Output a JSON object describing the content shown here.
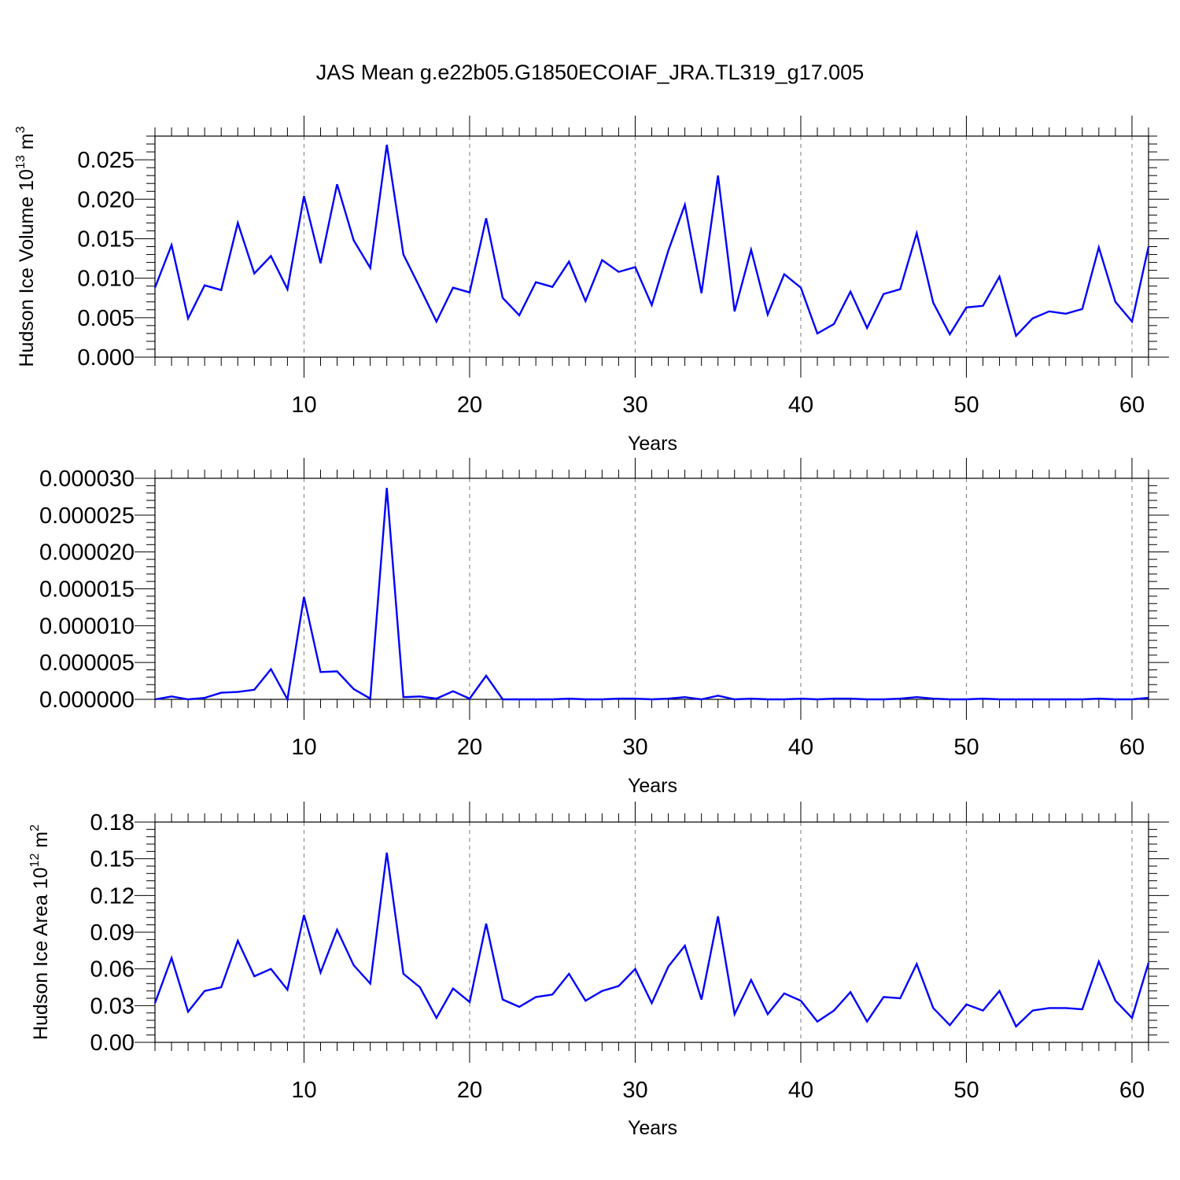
{
  "title": "JAS Mean g.e22b05.G1850ECOIAF_JRA.TL319_g17.005",
  "series_color": "#0000ff",
  "chart_data": [
    {
      "type": "line",
      "xlabel": "Years",
      "ylabel": {
        "text": "Hudson Ice Volume 10",
        "sup": "13",
        "unit": " m",
        "unit_sup": "3"
      },
      "xlim": [
        1,
        61
      ],
      "ylim": [
        0,
        0.028
      ],
      "xticks": [
        10,
        20,
        30,
        40,
        50,
        60
      ],
      "xtick_labels": [
        "10",
        "20",
        "30",
        "40",
        "50",
        "60"
      ],
      "yticks": [
        0,
        0.005,
        0.01,
        0.015,
        0.02,
        0.025
      ],
      "ytick_labels": [
        "0.000",
        "0.005",
        "0.010",
        "0.015",
        "0.020",
        "0.025"
      ],
      "grid": "x-dashed",
      "x": [
        1,
        2,
        3,
        4,
        5,
        6,
        7,
        8,
        9,
        10,
        11,
        12,
        13,
        14,
        15,
        16,
        17,
        18,
        19,
        20,
        21,
        22,
        23,
        24,
        25,
        26,
        27,
        28,
        29,
        30,
        31,
        32,
        33,
        34,
        35,
        36,
        37,
        38,
        39,
        40,
        41,
        42,
        43,
        44,
        45,
        46,
        47,
        48,
        49,
        50,
        51,
        52,
        53,
        54,
        55,
        56,
        57,
        58,
        59,
        60,
        61
      ],
      "values": [
        0.0088,
        0.0142,
        0.0049,
        0.0091,
        0.0085,
        0.017,
        0.0106,
        0.0128,
        0.0086,
        0.0204,
        0.0119,
        0.0219,
        0.0148,
        0.0113,
        0.0269,
        0.013,
        0.0088,
        0.0045,
        0.0088,
        0.0082,
        0.0176,
        0.0075,
        0.0053,
        0.0095,
        0.0089,
        0.0121,
        0.0071,
        0.0123,
        0.0108,
        0.0114,
        0.0066,
        0.0135,
        0.0193,
        0.0081,
        0.023,
        0.0058,
        0.0136,
        0.0054,
        0.0105,
        0.0088,
        0.003,
        0.0042,
        0.0083,
        0.0037,
        0.008,
        0.0086,
        0.0157,
        0.0069,
        0.0029,
        0.0063,
        0.0065,
        0.0102,
        0.0027,
        0.0049,
        0.0058,
        0.0055,
        0.0061,
        0.0139,
        0.007,
        0.0045,
        0.014
      ]
    },
    {
      "type": "line",
      "xlabel": "Years",
      "xlim": [
        1,
        61
      ],
      "ylim": [
        0,
        3e-05
      ],
      "xticks": [
        10,
        20,
        30,
        40,
        50,
        60
      ],
      "xtick_labels": [
        "10",
        "20",
        "30",
        "40",
        "50",
        "60"
      ],
      "yticks": [
        0,
        5e-06,
        1e-05,
        1.5e-05,
        2e-05,
        2.5e-05,
        3e-05
      ],
      "ytick_labels": [
        "0.000000",
        "0.000005",
        "0.000010",
        "0.000015",
        "0.000020",
        "0.000025",
        "0.000030"
      ],
      "grid": "x-dashed",
      "x": [
        1,
        2,
        3,
        4,
        5,
        6,
        7,
        8,
        9,
        10,
        11,
        12,
        13,
        14,
        15,
        16,
        17,
        18,
        19,
        20,
        21,
        22,
        23,
        24,
        25,
        26,
        27,
        28,
        29,
        30,
        31,
        32,
        33,
        34,
        35,
        36,
        37,
        38,
        39,
        40,
        41,
        42,
        43,
        44,
        45,
        46,
        47,
        48,
        49,
        50,
        51,
        52,
        53,
        54,
        55,
        56,
        57,
        58,
        59,
        60,
        61
      ],
      "values": [
        0.0,
        4e-07,
        0.0,
        2e-07,
        9e-07,
        1e-06,
        1.3e-06,
        4.1e-06,
        0.0,
        1.39e-05,
        3.7e-06,
        3.8e-06,
        1.4e-06,
        1e-07,
        2.87e-05,
        3e-07,
        4e-07,
        1e-07,
        1.1e-06,
        1e-07,
        3.2e-06,
        0.0,
        0.0,
        0.0,
        0.0,
        1e-07,
        0.0,
        0.0,
        1e-07,
        1e-07,
        0.0,
        1e-07,
        3e-07,
        0.0,
        5e-07,
        0.0,
        1e-07,
        0.0,
        0.0,
        1e-07,
        0.0,
        1e-07,
        1e-07,
        0.0,
        0.0,
        1e-07,
        3e-07,
        1e-07,
        0.0,
        0.0,
        1e-07,
        0.0,
        0.0,
        0.0,
        0.0,
        0.0,
        0.0,
        1e-07,
        0.0,
        0.0,
        2e-07
      ]
    },
    {
      "type": "line",
      "xlabel": "Years",
      "ylabel": {
        "text": "Hudson Ice Area 10",
        "sup": "12",
        "unit": " m",
        "unit_sup": "2"
      },
      "xlim": [
        1,
        61
      ],
      "ylim": [
        0,
        0.18
      ],
      "xticks": [
        10,
        20,
        30,
        40,
        50,
        60
      ],
      "xtick_labels": [
        "10",
        "20",
        "30",
        "40",
        "50",
        "60"
      ],
      "yticks": [
        0,
        0.03,
        0.06,
        0.09,
        0.12,
        0.15,
        0.18
      ],
      "ytick_labels": [
        "0.00",
        "0.03",
        "0.06",
        "0.09",
        "0.12",
        "0.15",
        "0.18"
      ],
      "grid": "x-dashed",
      "x": [
        1,
        2,
        3,
        4,
        5,
        6,
        7,
        8,
        9,
        10,
        11,
        12,
        13,
        14,
        15,
        16,
        17,
        18,
        19,
        20,
        21,
        22,
        23,
        24,
        25,
        26,
        27,
        28,
        29,
        30,
        31,
        32,
        33,
        34,
        35,
        36,
        37,
        38,
        39,
        40,
        41,
        42,
        43,
        44,
        45,
        46,
        47,
        48,
        49,
        50,
        51,
        52,
        53,
        54,
        55,
        56,
        57,
        58,
        59,
        60,
        61
      ],
      "values": [
        0.032,
        0.069,
        0.025,
        0.042,
        0.045,
        0.083,
        0.054,
        0.06,
        0.043,
        0.104,
        0.057,
        0.092,
        0.063,
        0.048,
        0.155,
        0.056,
        0.045,
        0.02,
        0.044,
        0.033,
        0.097,
        0.035,
        0.029,
        0.037,
        0.039,
        0.056,
        0.034,
        0.042,
        0.046,
        0.06,
        0.032,
        0.062,
        0.079,
        0.035,
        0.103,
        0.023,
        0.051,
        0.023,
        0.04,
        0.034,
        0.017,
        0.026,
        0.041,
        0.017,
        0.037,
        0.036,
        0.064,
        0.028,
        0.014,
        0.031,
        0.026,
        0.042,
        0.013,
        0.026,
        0.028,
        0.028,
        0.027,
        0.066,
        0.034,
        0.02,
        0.065
      ]
    }
  ]
}
